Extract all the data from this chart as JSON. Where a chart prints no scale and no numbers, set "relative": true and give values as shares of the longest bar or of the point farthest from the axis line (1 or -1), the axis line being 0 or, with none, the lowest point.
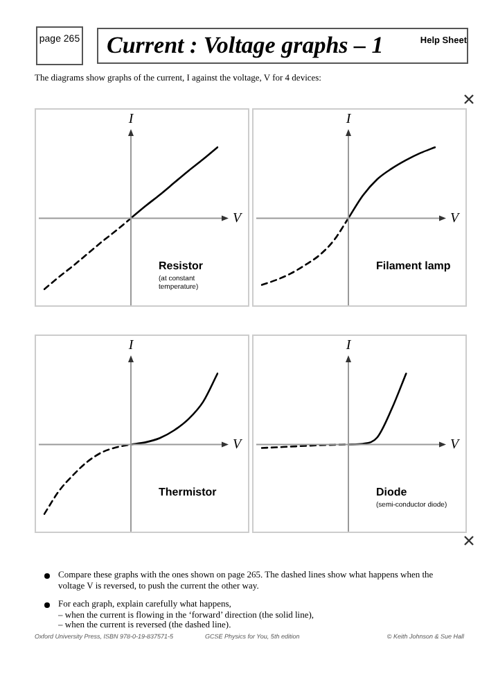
{
  "chart_data": [
    {
      "type": "other",
      "title": "Current : Voltage graphs – 1",
      "annotations": [
        "page 265",
        "Help Sheet",
        "The diagrams show graphs of the current, I against the voltage, V for 4 devices:",
        "Compare these graphs with the ones shown on page 265. The dashed lines show what happens when the voltage V is reversed, to push the current the other way.",
        "For each graph, explain carefully what happens,",
        "– when the current is flowing in the ‘forward’ direction (the solid line),",
        "– when the current is reversed (the dashed line).",
        "Oxford University Press, ISBN 978-0-19-837571-5",
        "GCSE Physics for You, 5th edition",
        "© Keith Johnson & Sue Hall"
      ]
    },
    {
      "type": "line",
      "relative": true,
      "xlabel": "V",
      "ylabel": "I",
      "annotations": [
        "Resistor",
        "(at constant",
        "temperature)"
      ],
      "categories": [
        null,
        null,
        null,
        null,
        null,
        null,
        null,
        null,
        null,
        null,
        null,
        null,
        null
      ],
      "series": [
        {
          "color": "#000000",
          "line_style": "solid",
          "values": [
            null,
            null,
            null,
            null,
            null,
            null,
            0,
            0.17,
            0.33,
            0.5,
            0.67,
            0.83,
            1
          ]
        },
        {
          "color": "#000000",
          "line_style": "dashed",
          "values": [
            -1,
            -0.83,
            -0.67,
            -0.5,
            -0.33,
            -0.17,
            0,
            null,
            null,
            null,
            null,
            null,
            null
          ]
        }
      ]
    },
    {
      "type": "line",
      "relative": true,
      "xlabel": "V",
      "ylabel": "I",
      "annotations": [
        "Filament lamp"
      ],
      "categories": [
        null,
        null,
        null,
        null,
        null,
        null,
        null,
        null,
        null,
        null,
        null,
        null,
        null
      ],
      "series": [
        {
          "color": "#000000",
          "line_style": "solid",
          "values": [
            null,
            null,
            null,
            null,
            null,
            null,
            0,
            0.32,
            0.55,
            0.7,
            0.82,
            0.92,
            1
          ]
        },
        {
          "color": "#000000",
          "line_style": "dashed",
          "values": [
            -0.94,
            -0.87,
            -0.78,
            -0.66,
            -0.52,
            -0.31,
            0,
            null,
            null,
            null,
            null,
            null,
            null
          ]
        }
      ]
    },
    {
      "type": "line",
      "relative": true,
      "xlabel": "V",
      "ylabel": "I",
      "annotations": [
        "Thermistor"
      ],
      "categories": [
        null,
        null,
        null,
        null,
        null,
        null,
        null,
        null,
        null,
        null,
        null,
        null,
        null
      ],
      "series": [
        {
          "color": "#000000",
          "line_style": "solid",
          "values": [
            null,
            null,
            null,
            null,
            null,
            null,
            0,
            0.03,
            0.09,
            0.2,
            0.36,
            0.6,
            1
          ]
        },
        {
          "color": "#000000",
          "line_style": "dashed",
          "values": [
            -0.98,
            -0.66,
            -0.43,
            -0.24,
            -0.11,
            -0.04,
            0,
            null,
            null,
            null,
            null,
            null,
            null
          ]
        }
      ]
    },
    {
      "type": "line",
      "relative": true,
      "xlabel": "V",
      "ylabel": "I",
      "annotations": [
        "Diode",
        "(semi-conductor diode)"
      ],
      "categories": [
        null,
        null,
        null,
        null,
        null,
        null,
        null,
        null,
        null,
        null,
        null,
        null,
        null
      ],
      "series": [
        {
          "color": "#000000",
          "line_style": "solid",
          "values": [
            null,
            null,
            null,
            null,
            null,
            null,
            0,
            0.01,
            0.1,
            0.5,
            1,
            null,
            null
          ]
        },
        {
          "color": "#000000",
          "line_style": "dashed",
          "values": [
            -0.05,
            -0.04,
            -0.03,
            -0.02,
            -0.01,
            -0.005,
            0,
            null,
            null,
            null,
            null,
            null,
            null
          ]
        }
      ]
    }
  ]
}
